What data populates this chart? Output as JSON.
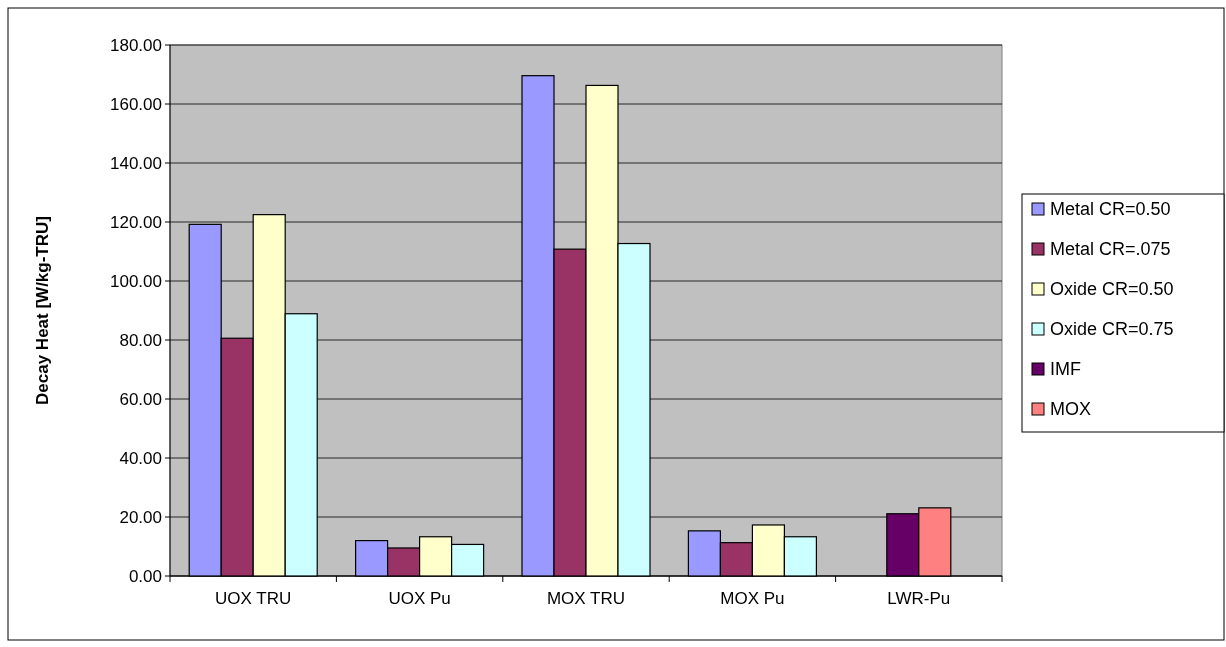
{
  "chart_data": {
    "type": "bar",
    "ylabel": "Decay Heat [W/kg-TRU]",
    "categories": [
      "UOX TRU",
      "UOX Pu",
      "MOX TRU",
      "MOX Pu",
      "LWR-Pu"
    ],
    "series": [
      {
        "name": "Metal CR=0.50",
        "color": "#9999ff",
        "values": [
          119.2,
          12.0,
          169.6,
          15.3,
          null
        ]
      },
      {
        "name": "Metal CR=.075",
        "color": "#993366",
        "values": [
          80.6,
          9.5,
          110.8,
          11.3,
          null
        ]
      },
      {
        "name": "Oxide CR=0.50",
        "color": "#ffffcc",
        "values": [
          122.5,
          13.3,
          166.3,
          17.3,
          null
        ]
      },
      {
        "name": "Oxide CR=0.75",
        "color": "#ccffff",
        "values": [
          88.9,
          10.7,
          112.7,
          13.3,
          null
        ]
      },
      {
        "name": "IMF",
        "color": "#660066",
        "values": [
          null,
          null,
          null,
          null,
          21.1
        ]
      },
      {
        "name": "MOX",
        "color": "#ff8080",
        "values": [
          null,
          null,
          null,
          null,
          23.1
        ]
      }
    ],
    "ylim": [
      0,
      180
    ],
    "yticks": [
      {
        "value": 0,
        "label": "0.00"
      },
      {
        "value": 20,
        "label": "20.00"
      },
      {
        "value": 40,
        "label": "40.00"
      },
      {
        "value": 60,
        "label": "60.00"
      },
      {
        "value": 80,
        "label": "80.00"
      },
      {
        "value": 100,
        "label": "100.00"
      },
      {
        "value": 120,
        "label": "120.00"
      },
      {
        "value": 140,
        "label": "140.00"
      },
      {
        "value": 160,
        "label": "160.00"
      },
      {
        "value": 180,
        "label": "180.00"
      }
    ],
    "grid": "y",
    "legend": "right"
  }
}
